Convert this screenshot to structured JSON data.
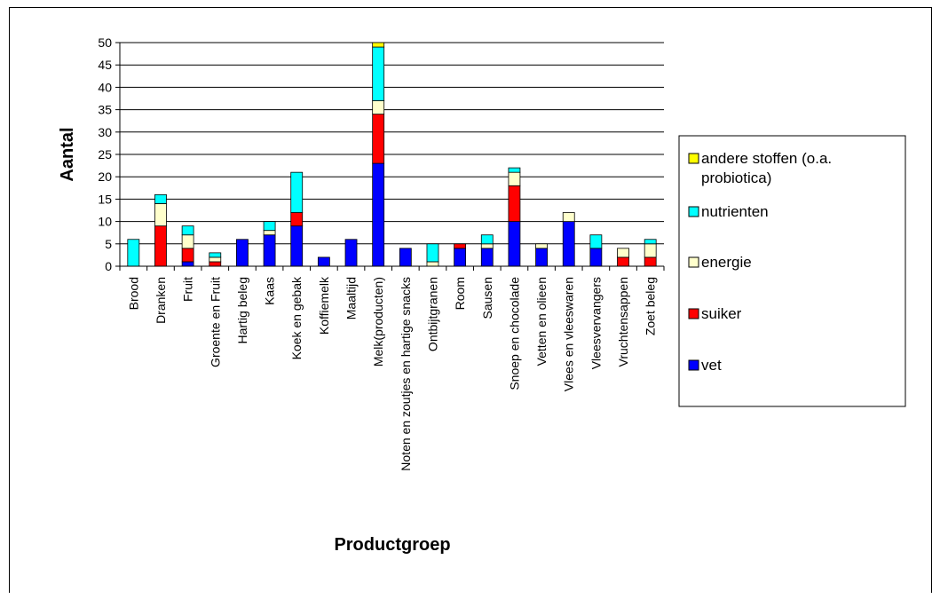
{
  "chart_data": {
    "type": "bar",
    "stacked": true,
    "title": "",
    "xlabel": "Productgroep",
    "ylabel": "Aantal",
    "ylim": [
      0,
      50
    ],
    "yticks": [
      0,
      5,
      10,
      15,
      20,
      25,
      30,
      35,
      40,
      45,
      50
    ],
    "grid": true,
    "legend_position": "right",
    "categories": [
      "Brood",
      "Dranken",
      "Fruit",
      "Groente en Fruit",
      "Hartig beleg",
      "Kaas",
      "Koek en gebak",
      "Koffiemelk",
      "Maaltijd",
      "Melk(producten)",
      "Noten en zoutjes en hartige snacks",
      "Ontbijtgranen",
      "Room",
      "Sausen",
      "Snoep en chocolade",
      "Vetten en olieen",
      "Vlees en vleeswaren",
      "Vleesvervangers",
      "Vruchtensappen",
      "Zoet beleg"
    ],
    "series": [
      {
        "name": "vet",
        "color": "#0000ff",
        "values": [
          0,
          0,
          1,
          0,
          6,
          7,
          9,
          2,
          6,
          23,
          4,
          0,
          4,
          4,
          10,
          4,
          10,
          4,
          0,
          0
        ]
      },
      {
        "name": "suiker",
        "color": "#ff0000",
        "values": [
          0,
          9,
          3,
          1,
          0,
          0,
          3,
          0,
          0,
          11,
          0,
          0,
          1,
          0,
          8,
          0,
          0,
          0,
          2,
          2
        ]
      },
      {
        "name": "energie",
        "color": "#ffffcc",
        "values": [
          0,
          5,
          3,
          1,
          0,
          1,
          0,
          0,
          0,
          3,
          0,
          1,
          0,
          1,
          3,
          1,
          2,
          0,
          2,
          3
        ]
      },
      {
        "name": "nutrienten",
        "color": "#00ffff",
        "values": [
          6,
          2,
          2,
          1,
          0,
          2,
          9,
          0,
          0,
          12,
          0,
          4,
          0,
          2,
          1,
          0,
          0,
          3,
          0,
          1
        ]
      },
      {
        "name": "andere stoffen (o.a. probiotica)",
        "color": "#ffff00",
        "values": [
          0,
          0,
          0,
          0,
          0,
          0,
          0,
          0,
          0,
          1,
          0,
          0,
          0,
          0,
          0,
          0,
          0,
          0,
          0,
          0
        ]
      }
    ],
    "legend_order": [
      "andere stoffen (o.a. probiotica)",
      "nutrienten",
      "energie",
      "suiker",
      "vet"
    ]
  }
}
